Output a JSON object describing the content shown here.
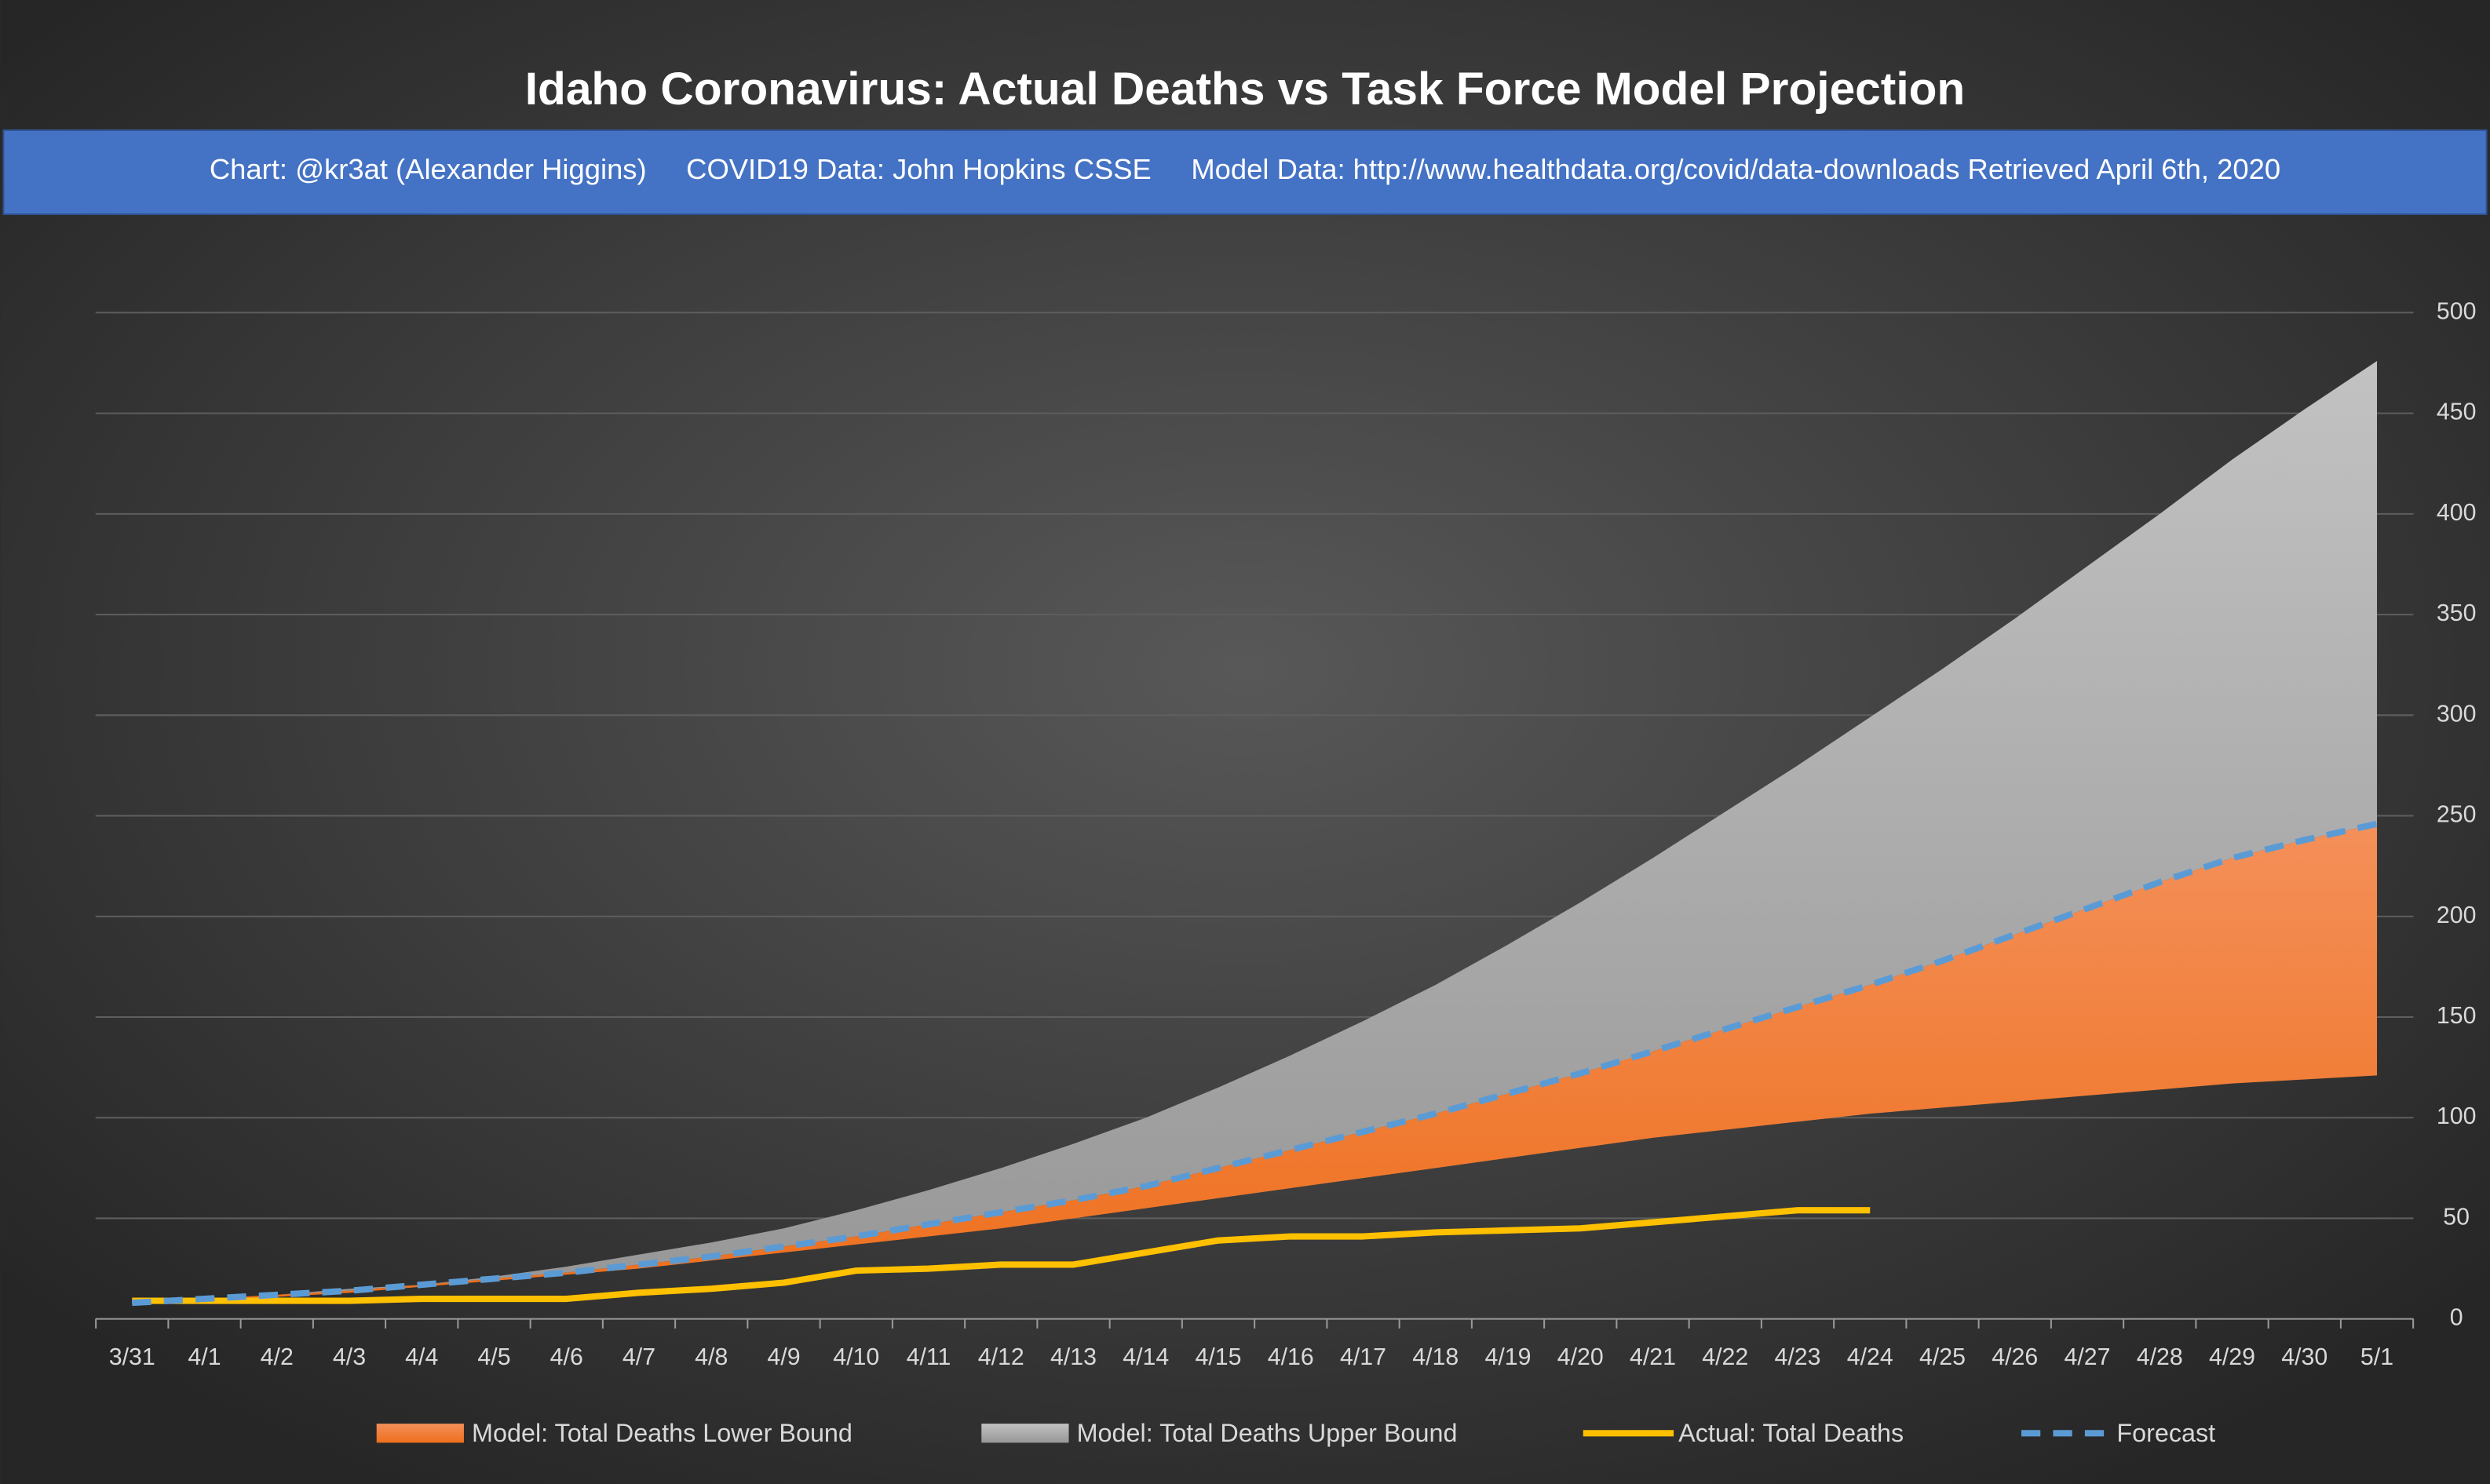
{
  "chart_data": {
    "type": "area",
    "title": "Idaho Coronavirus: Actual Deaths vs Task Force Model Projection",
    "subtitle": "Chart: @kr3at (Alexander Higgins)     COVID19 Data: John Hopkins CSSE     Model Data: http://www.healthdata.org/covid/data-downloads Retrieved April 6th, 2020",
    "categories": [
      "3/31",
      "4/1",
      "4/2",
      "4/3",
      "4/4",
      "4/5",
      "4/6",
      "4/7",
      "4/8",
      "4/9",
      "4/10",
      "4/11",
      "4/12",
      "4/13",
      "4/14",
      "4/15",
      "4/16",
      "4/17",
      "4/18",
      "4/19",
      "4/20",
      "4/21",
      "4/22",
      "4/23",
      "4/24",
      "4/25",
      "4/26",
      "4/27",
      "4/28",
      "4/29",
      "4/30",
      "5/1"
    ],
    "series": [
      {
        "name": "Model: Total Deaths Lower Bound",
        "color": "#f07a2c",
        "values": [
          8,
          9,
          11,
          13,
          16,
          19,
          22,
          25,
          29,
          33,
          37,
          41,
          45,
          50,
          55,
          60,
          65,
          70,
          75,
          80,
          85,
          90,
          94,
          98,
          102,
          105,
          108,
          111,
          114,
          117,
          119,
          121
        ]
      },
      {
        "name": "Model: Total Deaths Upper Bound",
        "color": "#aaaaaa",
        "values": [
          8,
          10,
          12,
          15,
          17,
          21,
          26,
          32,
          38,
          45,
          54,
          64,
          75,
          87,
          100,
          115,
          131,
          148,
          166,
          186,
          207,
          229,
          252,
          275,
          299,
          323,
          348,
          374,
          400,
          427,
          452,
          476
        ]
      },
      {
        "name": "Actual: Total Deaths",
        "color": "#ffc000",
        "values": [
          9,
          9,
          9,
          9,
          10,
          10,
          10,
          13,
          15,
          18,
          24,
          25,
          27,
          27,
          33,
          39,
          41,
          41,
          43,
          44,
          45,
          48,
          51,
          54,
          54,
          null,
          null,
          null,
          null,
          null,
          null,
          null
        ]
      },
      {
        "name": "Forecast",
        "color": "#5b9bd5",
        "values": [
          8,
          10,
          12,
          14,
          17,
          20,
          23,
          27,
          31,
          36,
          41,
          47,
          53,
          59,
          66,
          75,
          84,
          93,
          102,
          112,
          122,
          133,
          144,
          155,
          166,
          178,
          191,
          204,
          217,
          229,
          238,
          246
        ]
      }
    ],
    "ylim": [
      0,
      500
    ],
    "yticks": [
      0,
      50,
      100,
      150,
      200,
      250,
      300,
      350,
      400,
      450,
      500
    ],
    "grid": true
  }
}
